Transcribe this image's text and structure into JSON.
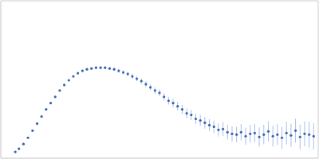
{
  "chart_data": {
    "type": "scatter",
    "color": "#3a62b0",
    "marker": "circle",
    "grid": true,
    "tick_labels": false,
    "xlim": [
      0,
      0.35
    ],
    "xticks": [
      0.1
    ],
    "ylim": [
      0,
      2
    ],
    "yticks": [
      1
    ],
    "x": [
      0.016,
      0.02,
      0.025,
      0.03,
      0.035,
      0.04,
      0.045,
      0.05,
      0.055,
      0.06,
      0.065,
      0.07,
      0.075,
      0.08,
      0.085,
      0.09,
      0.095,
      0.1,
      0.105,
      0.11,
      0.115,
      0.12,
      0.125,
      0.13,
      0.135,
      0.14,
      0.145,
      0.15,
      0.155,
      0.16,
      0.165,
      0.17,
      0.175,
      0.18,
      0.185,
      0.19,
      0.195,
      0.2,
      0.205,
      0.21,
      0.215,
      0.22,
      0.225,
      0.23,
      0.235,
      0.24,
      0.245,
      0.25,
      0.255,
      0.26,
      0.265,
      0.27,
      0.275,
      0.28,
      0.285,
      0.29,
      0.295,
      0.3,
      0.305,
      0.31,
      0.315,
      0.32,
      0.325,
      0.33,
      0.335,
      0.34,
      0.345
    ],
    "values": [
      0.08,
      0.12,
      0.18,
      0.26,
      0.35,
      0.44,
      0.53,
      0.62,
      0.7,
      0.78,
      0.86,
      0.93,
      0.99,
      1.04,
      1.08,
      1.11,
      1.13,
      1.14,
      1.15,
      1.15,
      1.15,
      1.14,
      1.13,
      1.11,
      1.09,
      1.07,
      1.04,
      1.01,
      0.98,
      0.94,
      0.9,
      0.86,
      0.83,
      0.78,
      0.73,
      0.7,
      0.66,
      0.62,
      0.57,
      0.55,
      0.5,
      0.48,
      0.45,
      0.42,
      0.4,
      0.36,
      0.37,
      0.33,
      0.31,
      0.3,
      0.33,
      0.28,
      0.31,
      0.32,
      0.27,
      0.3,
      0.34,
      0.28,
      0.3,
      0.26,
      0.32,
      0.29,
      0.35,
      0.27,
      0.31,
      0.3,
      0.28
    ],
    "errors": [
      0.005,
      0.005,
      0.005,
      0.006,
      0.006,
      0.007,
      0.007,
      0.008,
      0.008,
      0.009,
      0.01,
      0.01,
      0.011,
      0.012,
      0.013,
      0.014,
      0.015,
      0.016,
      0.017,
      0.018,
      0.019,
      0.02,
      0.022,
      0.024,
      0.026,
      0.028,
      0.03,
      0.032,
      0.034,
      0.036,
      0.038,
      0.04,
      0.043,
      0.046,
      0.049,
      0.052,
      0.055,
      0.058,
      0.061,
      0.064,
      0.067,
      0.07,
      0.073,
      0.076,
      0.08,
      0.084,
      0.088,
      0.092,
      0.096,
      0.1,
      0.104,
      0.108,
      0.112,
      0.116,
      0.12,
      0.124,
      0.128,
      0.132,
      0.136,
      0.14,
      0.144,
      0.148,
      0.152,
      0.156,
      0.16,
      0.164,
      0.168
    ]
  }
}
